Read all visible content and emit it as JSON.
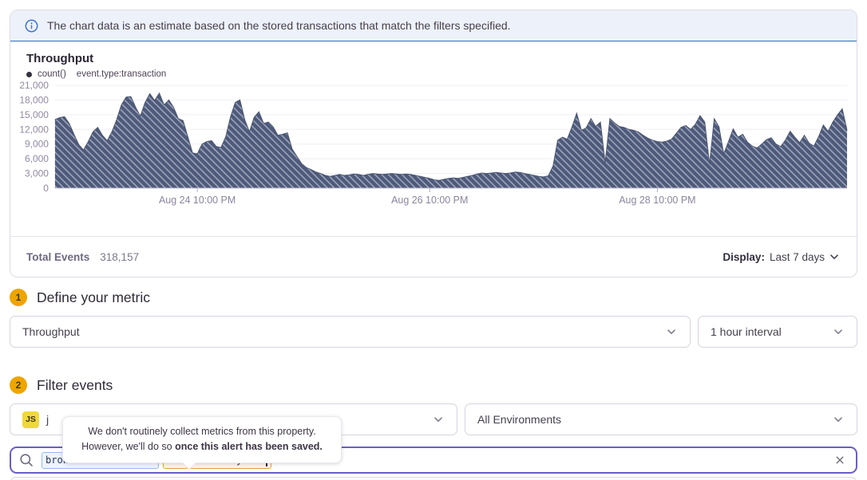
{
  "banner": {
    "text": "The chart data is an estimate based on the stored transactions that match the filters specified."
  },
  "chart_panel": {
    "title": "Throughput",
    "legend": {
      "series": "count()",
      "filter": "event.type:transaction"
    },
    "summary": {
      "label": "Total Events",
      "value": "318,157"
    },
    "display": {
      "label": "Display:",
      "value": "Last 7 days"
    }
  },
  "chart_data": {
    "type": "area",
    "title": "Throughput",
    "series": [
      {
        "name": "count()",
        "values": [
          14000,
          14400,
          14600,
          13200,
          11000,
          8900,
          7800,
          9500,
          11500,
          12400,
          10800,
          9700,
          11500,
          14000,
          17000,
          18600,
          18700,
          16500,
          14700,
          17500,
          19300,
          17900,
          19400,
          17000,
          18000,
          16500,
          14200,
          13800,
          10500,
          7200,
          7000,
          9000,
          9500,
          9700,
          8500,
          8300,
          10500,
          14500,
          17500,
          18000,
          14000,
          11500,
          14500,
          15600,
          13200,
          13500,
          12500,
          10800,
          11000,
          11300,
          8000,
          6500,
          5000,
          4200,
          3800,
          3300,
          3000,
          2600,
          2400,
          2600,
          2800,
          2600,
          2700,
          2900,
          2800,
          2600,
          2800,
          3000,
          2900,
          2800,
          2900,
          3000,
          2900,
          2800,
          2900,
          2800,
          2600,
          2400,
          2200,
          2000,
          1700,
          1600,
          1800,
          2000,
          2100,
          2000,
          2200,
          2400,
          2600,
          2900,
          3100,
          3000,
          3100,
          3200,
          3100,
          3000,
          3100,
          3300,
          3200,
          3000,
          2800,
          2600,
          2400,
          2300,
          2500,
          4500,
          9800,
          10400,
          10000,
          12500,
          15300,
          11800,
          12300,
          14200,
          12600,
          13500,
          5200,
          14200,
          13300,
          12600,
          12400,
          12000,
          11800,
          11500,
          10800,
          10200,
          9800,
          9500,
          9400,
          9600,
          10000,
          11200,
          12400,
          12800,
          12000,
          13000,
          14800,
          13500,
          4900,
          14200,
          12500,
          7000,
          9500,
          12100,
          10400,
          11000,
          9400,
          8600,
          8200,
          9000,
          9900,
          10300,
          9000,
          8500,
          9800,
          11600,
          10400,
          9300,
          10800,
          9200,
          8600,
          10500,
          12900,
          11600,
          13500,
          15000,
          16200,
          11800
        ]
      }
    ],
    "x_tick_labels": [
      "Aug 24 10:00 PM",
      "Aug 26 10:00 PM",
      "Aug 28 10:00 PM"
    ],
    "x_tick_indices": [
      30,
      79,
      127
    ],
    "y_ticks": [
      0,
      3000,
      6000,
      9000,
      12000,
      15000,
      18000,
      21000
    ],
    "y_tick_labels": [
      "0",
      "3,000",
      "6,000",
      "9,000",
      "12,000",
      "15,000",
      "18,000",
      "21,000"
    ],
    "ylim": [
      0,
      21000
    ],
    "grid": true,
    "legend_position": "top-left",
    "fill_color": "#4e5a7b",
    "hatch": true
  },
  "sections": {
    "metric": {
      "number": "1",
      "title": "Define your metric"
    },
    "filter": {
      "number": "2",
      "title": "Filter events"
    }
  },
  "metric_select": {
    "value": "Throughput"
  },
  "interval_select": {
    "value": "1 hour interval"
  },
  "project_select": {
    "badge": "JS",
    "value": "j"
  },
  "environment_select": {
    "value": "All Environments"
  },
  "tooltip": {
    "line1": "We don't routinely collect metrics from this property.",
    "line2_normal": "However, we'll do so ",
    "line2_bold": "once this alert has been saved."
  },
  "search": {
    "tokens": [
      {
        "key": "browser.name:",
        "value": "Chrome",
        "style": "blue"
      },
      {
        "key": "device.family:",
        "value": "Mac",
        "style": "warning"
      }
    ],
    "icons": {
      "left": "search-icon",
      "right": "clear-icon"
    }
  },
  "colors": {
    "accent_purple": "#6a5ec7",
    "banner_bg": "#edf1fa",
    "banner_border": "#2f6cbe",
    "chart_fill": "#4e5a7b",
    "step_badge": "#eea500",
    "token_blue": "#2c6cd6",
    "token_warn_border": "#dfa43b",
    "js_badge": "#f0d83c"
  }
}
